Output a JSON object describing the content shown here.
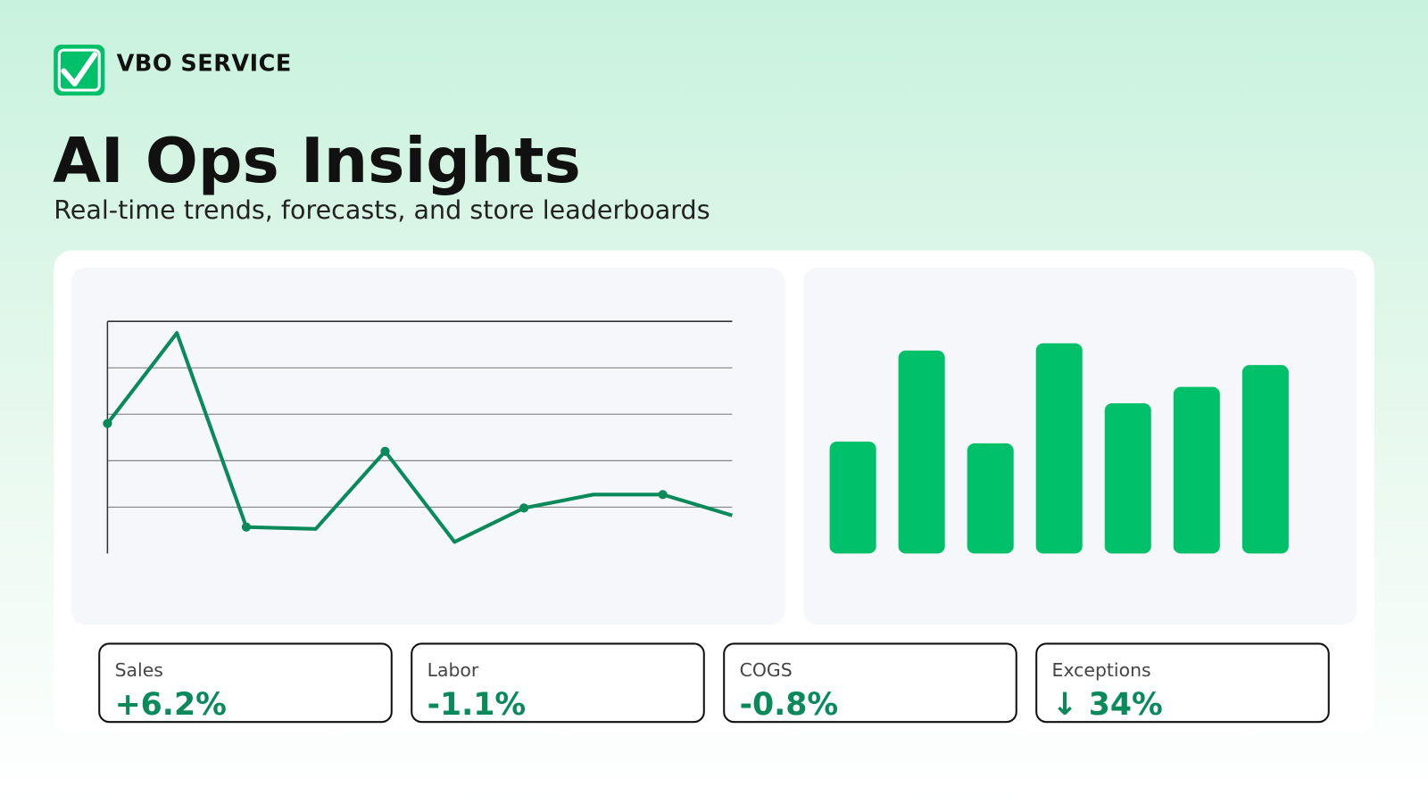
{
  "header": {
    "brand": "VBO SERVICE",
    "title": "AI Ops Insights",
    "subtitle": "Real-time trends, forecasts, and store leaderboards"
  },
  "chart_data": [
    {
      "type": "line",
      "values": [
        2.8,
        4.75,
        0.57,
        0.53,
        2.2,
        0.25,
        0.98,
        1.27,
        1.27,
        0.82
      ],
      "color": "#0a8a5a",
      "ylim": [
        0,
        5
      ],
      "yticks": [
        0,
        1,
        2,
        3,
        4,
        5
      ],
      "grid": true
    },
    {
      "type": "bar",
      "values": [
        123,
        223,
        121,
        231,
        165,
        183,
        207
      ],
      "color": "#00c16a",
      "ylim": [
        0,
        260
      ]
    }
  ],
  "kpis": [
    {
      "label": "Sales",
      "value": "+6.2%"
    },
    {
      "label": "Labor",
      "value": "-1.1%"
    },
    {
      "label": "COGS",
      "value": "-0.8%"
    },
    {
      "label": "Exceptions",
      "value": "↓ 34%"
    }
  ]
}
